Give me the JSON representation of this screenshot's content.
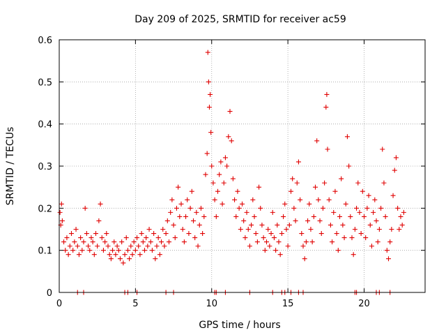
{
  "chart_data": {
    "type": "scatter",
    "title": "Day 209 of 2025, SRMTID for receiver ac59",
    "xlabel": "GPS time / hours",
    "ylabel": "SRMTID / TECUs",
    "xlim": [
      0,
      24
    ],
    "ylim": [
      0,
      0.6
    ],
    "x_ticks": [
      0,
      5,
      10,
      15,
      20
    ],
    "x_tick_labels": [
      "0",
      "5",
      "10",
      "15",
      "20"
    ],
    "y_ticks": [
      0,
      0.1,
      0.2,
      0.3,
      0.4,
      0.5,
      0.6
    ],
    "y_tick_labels": [
      "0",
      "0.1",
      "0.2",
      "0.3",
      "0.4",
      "0.5",
      "0.6"
    ],
    "grid": true,
    "marker": "+",
    "color": "#e00000",
    "series": [
      {
        "name": "SRMTID",
        "points": [
          [
            0.05,
            0.19
          ],
          [
            0.1,
            0.16
          ],
          [
            0.15,
            0.21
          ],
          [
            0.2,
            0.17
          ],
          [
            0.3,
            0.12
          ],
          [
            0.4,
            0.1
          ],
          [
            0.5,
            0.13
          ],
          [
            0.6,
            0.09
          ],
          [
            0.7,
            0.11
          ],
          [
            0.8,
            0.14
          ],
          [
            0.9,
            0.1
          ],
          [
            1.0,
            0.12
          ],
          [
            1.1,
            0.15
          ],
          [
            1.2,
            0.11
          ],
          [
            1.3,
            0.09
          ],
          [
            1.4,
            0.13
          ],
          [
            1.5,
            0.1
          ],
          [
            1.6,
            0.12
          ],
          [
            1.7,
            0.2
          ],
          [
            1.8,
            0.14
          ],
          [
            1.9,
            0.11
          ],
          [
            2.0,
            0.1
          ],
          [
            2.1,
            0.13
          ],
          [
            2.2,
            0.12
          ],
          [
            2.3,
            0.09
          ],
          [
            2.4,
            0.14
          ],
          [
            2.5,
            0.11
          ],
          [
            2.6,
            0.17
          ],
          [
            2.7,
            0.21
          ],
          [
            2.8,
            0.13
          ],
          [
            2.9,
            0.1
          ],
          [
            3.0,
            0.12
          ],
          [
            3.1,
            0.14
          ],
          [
            3.2,
            0.11
          ],
          [
            3.3,
            0.09
          ],
          [
            3.4,
            0.08
          ],
          [
            3.5,
            0.1
          ],
          [
            3.6,
            0.12
          ],
          [
            3.7,
            0.09
          ],
          [
            3.8,
            0.11
          ],
          [
            3.9,
            0.1
          ],
          [
            4.0,
            0.08
          ],
          [
            4.1,
            0.12
          ],
          [
            4.2,
            0.07
          ],
          [
            4.3,
            0.09
          ],
          [
            4.4,
            0.13
          ],
          [
            4.5,
            0.1
          ],
          [
            4.6,
            0.08
          ],
          [
            4.7,
            0.11
          ],
          [
            4.8,
            0.09
          ],
          [
            4.9,
            0.12
          ],
          [
            5.0,
            0.1
          ],
          [
            5.1,
            0.13
          ],
          [
            5.2,
            0.11
          ],
          [
            5.3,
            0.09
          ],
          [
            5.4,
            0.14
          ],
          [
            5.5,
            0.12
          ],
          [
            5.6,
            0.1
          ],
          [
            5.7,
            0.13
          ],
          [
            5.8,
            0.11
          ],
          [
            5.9,
            0.15
          ],
          [
            6.0,
            0.12
          ],
          [
            6.1,
            0.1
          ],
          [
            6.2,
            0.14
          ],
          [
            6.3,
            0.08
          ],
          [
            6.4,
            0.11
          ],
          [
            6.5,
            0.13
          ],
          [
            6.6,
            0.09
          ],
          [
            6.7,
            0.12
          ],
          [
            6.8,
            0.15
          ],
          [
            6.9,
            0.11
          ],
          [
            7.0,
            0.14
          ],
          [
            7.1,
            0.17
          ],
          [
            7.2,
            0.12
          ],
          [
            7.3,
            0.19
          ],
          [
            7.4,
            0.22
          ],
          [
            7.5,
            0.16
          ],
          [
            7.6,
            0.13
          ],
          [
            7.7,
            0.2
          ],
          [
            7.8,
            0.25
          ],
          [
            7.9,
            0.18
          ],
          [
            8.0,
            0.21
          ],
          [
            8.1,
            0.15
          ],
          [
            8.2,
            0.12
          ],
          [
            8.3,
            0.18
          ],
          [
            8.4,
            0.22
          ],
          [
            8.5,
            0.14
          ],
          [
            8.6,
            0.2
          ],
          [
            8.7,
            0.24
          ],
          [
            8.8,
            0.17
          ],
          [
            8.9,
            0.13
          ],
          [
            9.0,
            0.19
          ],
          [
            9.1,
            0.11
          ],
          [
            9.2,
            0.16
          ],
          [
            9.3,
            0.2
          ],
          [
            9.4,
            0.14
          ],
          [
            9.5,
            0.18
          ],
          [
            9.6,
            0.28
          ],
          [
            9.7,
            0.33
          ],
          [
            9.75,
            0.57
          ],
          [
            9.8,
            0.5
          ],
          [
            9.85,
            0.44
          ],
          [
            9.9,
            0.47
          ],
          [
            9.95,
            0.38
          ],
          [
            10.0,
            0.3
          ],
          [
            10.1,
            0.26
          ],
          [
            10.2,
            0.22
          ],
          [
            10.3,
            0.18
          ],
          [
            10.4,
            0.24
          ],
          [
            10.5,
            0.28
          ],
          [
            10.6,
            0.31
          ],
          [
            10.7,
            0.21
          ],
          [
            10.8,
            0.26
          ],
          [
            10.9,
            0.32
          ],
          [
            11.0,
            0.3
          ],
          [
            11.1,
            0.37
          ],
          [
            11.2,
            0.43
          ],
          [
            11.3,
            0.36
          ],
          [
            11.4,
            0.27
          ],
          [
            11.5,
            0.22
          ],
          [
            11.6,
            0.18
          ],
          [
            11.7,
            0.24
          ],
          [
            11.8,
            0.2
          ],
          [
            11.9,
            0.15
          ],
          [
            12.0,
            0.21
          ],
          [
            12.1,
            0.17
          ],
          [
            12.2,
            0.13
          ],
          [
            12.3,
            0.19
          ],
          [
            12.4,
            0.15
          ],
          [
            12.5,
            0.11
          ],
          [
            12.6,
            0.16
          ],
          [
            12.7,
            0.22
          ],
          [
            12.8,
            0.18
          ],
          [
            12.9,
            0.14
          ],
          [
            13.0,
            0.12
          ],
          [
            13.1,
            0.25
          ],
          [
            13.2,
            0.2
          ],
          [
            13.3,
            0.16
          ],
          [
            13.4,
            0.13
          ],
          [
            13.5,
            0.1
          ],
          [
            13.6,
            0.12
          ],
          [
            13.7,
            0.15
          ],
          [
            13.8,
            0.11
          ],
          [
            13.9,
            0.14
          ],
          [
            14.0,
            0.19
          ],
          [
            14.1,
            0.13
          ],
          [
            14.2,
            0.1
          ],
          [
            14.3,
            0.16
          ],
          [
            14.4,
            0.12
          ],
          [
            14.5,
            0.09
          ],
          [
            14.6,
            0.14
          ],
          [
            14.7,
            0.18
          ],
          [
            14.8,
            0.21
          ],
          [
            14.9,
            0.15
          ],
          [
            15.0,
            0.11
          ],
          [
            15.1,
            0.16
          ],
          [
            15.2,
            0.24
          ],
          [
            15.3,
            0.27
          ],
          [
            15.4,
            0.2
          ],
          [
            15.5,
            0.17
          ],
          [
            15.6,
            0.26
          ],
          [
            15.7,
            0.31
          ],
          [
            15.8,
            0.22
          ],
          [
            15.9,
            0.14
          ],
          [
            16.0,
            0.11
          ],
          [
            16.1,
            0.08
          ],
          [
            16.2,
            0.12
          ],
          [
            16.3,
            0.17
          ],
          [
            16.4,
            0.21
          ],
          [
            16.5,
            0.15
          ],
          [
            16.6,
            0.12
          ],
          [
            16.7,
            0.18
          ],
          [
            16.8,
            0.25
          ],
          [
            16.9,
            0.36
          ],
          [
            17.0,
            0.22
          ],
          [
            17.1,
            0.17
          ],
          [
            17.2,
            0.14
          ],
          [
            17.3,
            0.2
          ],
          [
            17.4,
            0.26
          ],
          [
            17.5,
            0.44
          ],
          [
            17.55,
            0.47
          ],
          [
            17.6,
            0.34
          ],
          [
            17.7,
            0.22
          ],
          [
            17.8,
            0.16
          ],
          [
            17.9,
            0.12
          ],
          [
            18.0,
            0.19
          ],
          [
            18.1,
            0.24
          ],
          [
            18.2,
            0.14
          ],
          [
            18.3,
            0.1
          ],
          [
            18.4,
            0.18
          ],
          [
            18.5,
            0.27
          ],
          [
            18.6,
            0.16
          ],
          [
            18.7,
            0.13
          ],
          [
            18.8,
            0.21
          ],
          [
            18.9,
            0.37
          ],
          [
            19.0,
            0.3
          ],
          [
            19.1,
            0.18
          ],
          [
            19.2,
            0.13
          ],
          [
            19.3,
            0.09
          ],
          [
            19.4,
            0.15
          ],
          [
            19.5,
            0.2
          ],
          [
            19.6,
            0.26
          ],
          [
            19.7,
            0.19
          ],
          [
            19.8,
            0.14
          ],
          [
            19.9,
            0.24
          ],
          [
            20.0,
            0.18
          ],
          [
            20.1,
            0.13
          ],
          [
            20.2,
            0.2
          ],
          [
            20.3,
            0.23
          ],
          [
            20.4,
            0.16
          ],
          [
            20.5,
            0.11
          ],
          [
            20.6,
            0.19
          ],
          [
            20.7,
            0.22
          ],
          [
            20.8,
            0.17
          ],
          [
            20.9,
            0.12
          ],
          [
            21.0,
            0.15
          ],
          [
            21.1,
            0.2
          ],
          [
            21.2,
            0.34
          ],
          [
            21.3,
            0.26
          ],
          [
            21.4,
            0.18
          ],
          [
            21.5,
            0.1
          ],
          [
            21.6,
            0.08
          ],
          [
            21.7,
            0.12
          ],
          [
            21.8,
            0.15
          ],
          [
            21.9,
            0.23
          ],
          [
            22.0,
            0.29
          ],
          [
            22.1,
            0.32
          ],
          [
            22.2,
            0.2
          ],
          [
            22.3,
            0.15
          ],
          [
            22.4,
            0.18
          ],
          [
            22.5,
            0.16
          ],
          [
            22.6,
            0.19
          ],
          [
            1.2,
            0.0
          ],
          [
            1.6,
            0.0
          ],
          [
            4.3,
            0.0
          ],
          [
            4.5,
            0.0
          ],
          [
            5.1,
            0.0
          ],
          [
            7.0,
            0.0
          ],
          [
            7.5,
            0.0
          ],
          [
            10.2,
            0.0
          ],
          [
            10.3,
            0.0
          ],
          [
            10.9,
            0.0
          ],
          [
            12.5,
            0.0
          ],
          [
            14.0,
            0.0
          ],
          [
            14.6,
            0.0
          ],
          [
            14.8,
            0.0
          ],
          [
            15.2,
            0.0
          ],
          [
            15.7,
            0.0
          ],
          [
            16.0,
            0.0
          ],
          [
            19.4,
            0.0
          ],
          [
            19.5,
            0.0
          ],
          [
            20.8,
            0.0
          ],
          [
            21.0,
            0.0
          ],
          [
            21.7,
            0.0
          ]
        ]
      }
    ]
  }
}
